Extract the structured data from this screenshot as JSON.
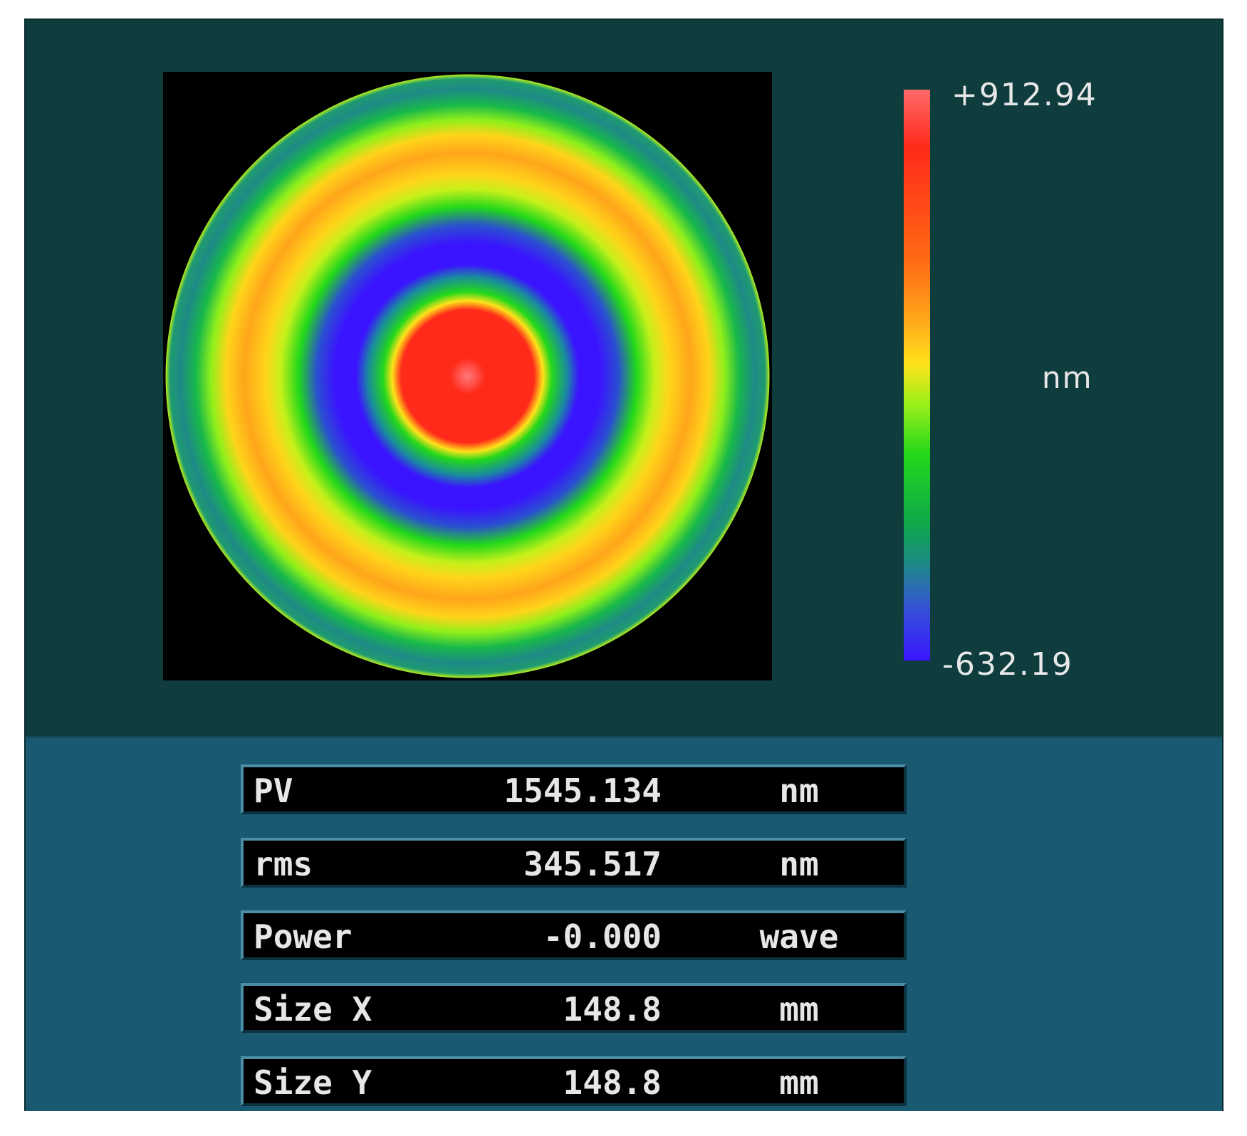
{
  "colorbar": {
    "max_label": "+912.94",
    "min_label": "-632.19",
    "unit": "nm"
  },
  "surface_map": {
    "shape": "circle",
    "pattern": "concentric rings",
    "ring_colors_center_to_edge": [
      "#ff2a1a",
      "#ffe21a",
      "#22d81a",
      "#3a14ff",
      "#22d81a",
      "#ffe21a",
      "#ffa51a",
      "#ffe21a",
      "#22d81a",
      "#1e8a86",
      "#22d81a"
    ]
  },
  "stats": [
    {
      "name": "PV",
      "value": "1545.134",
      "unit": "nm"
    },
    {
      "name": "rms",
      "value": "345.517",
      "unit": "nm"
    },
    {
      "name": "Power",
      "value": "-0.000",
      "unit": "wave"
    },
    {
      "name": "Size X",
      "value": "148.8",
      "unit": "mm"
    },
    {
      "name": "Size Y",
      "value": "148.8",
      "unit": "mm"
    }
  ],
  "colors": {
    "top_panel_bg": "#0f3d3e",
    "bottom_panel_bg": "#195a72",
    "stat_box_bg": "#000000",
    "text": "#e6e6e6"
  }
}
